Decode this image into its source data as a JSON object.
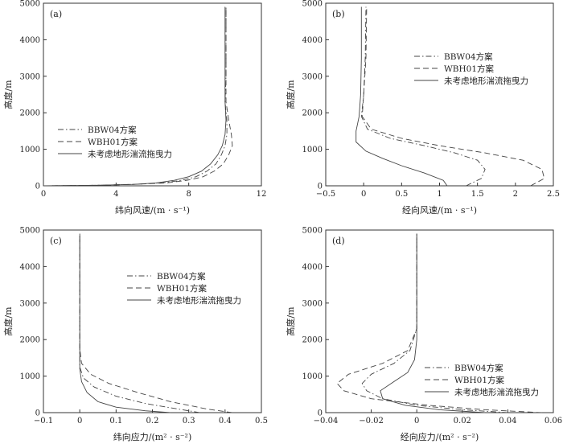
{
  "chart_data": [
    {
      "type": "line",
      "panel_label": "(a)",
      "xlabel": "纬向风速/(m · s⁻¹)",
      "ylabel": "高度/m",
      "xlim": [
        0,
        12
      ],
      "ylim": [
        0,
        5000
      ],
      "xticks": [
        "0",
        "4",
        "8",
        "12"
      ],
      "yticks": [
        "0",
        "1000",
        "2000",
        "3000",
        "4000",
        "5000"
      ],
      "legend_position": "middle-left",
      "series": [
        {
          "name": "BBW04方案",
          "style": "dashdot",
          "x": [
            0,
            3,
            5,
            6.5,
            7.6,
            8.4,
            9.0,
            9.5,
            9.8,
            10.0,
            10.1,
            10.1,
            10.0,
            10.05,
            10.05
          ],
          "y": [
            0,
            15,
            40,
            80,
            150,
            250,
            400,
            600,
            850,
            1100,
            1400,
            1800,
            2300,
            3000,
            4900
          ]
        },
        {
          "name": "WBH01方案",
          "style": "dashed",
          "x": [
            0,
            3,
            5,
            6.8,
            7.9,
            8.8,
            9.4,
            9.9,
            10.2,
            10.4,
            10.35,
            10.2,
            10.05,
            10.05,
            10.05
          ],
          "y": [
            0,
            15,
            40,
            80,
            150,
            250,
            400,
            600,
            850,
            1100,
            1400,
            1800,
            2300,
            3000,
            4900
          ]
        },
        {
          "name": "未考虑地形湍流拖曳力",
          "style": "solid",
          "x": [
            0,
            3,
            5,
            6.2,
            7.2,
            8.0,
            8.7,
            9.2,
            9.6,
            9.85,
            10.0,
            10.05,
            10.0,
            10.0,
            10.0
          ],
          "y": [
            0,
            15,
            40,
            80,
            150,
            250,
            400,
            600,
            850,
            1100,
            1400,
            1800,
            2300,
            3000,
            4900
          ]
        }
      ]
    },
    {
      "type": "line",
      "panel_label": "(b)",
      "xlabel": "经向风速/(m · s⁻¹)",
      "ylabel": "高度/m",
      "xlim": [
        -0.5,
        2.5
      ],
      "ylim": [
        0,
        5000
      ],
      "xticks": [
        "−0.5",
        "0",
        "0.5",
        "1",
        "1.5",
        "2",
        "2.5"
      ],
      "yticks": [
        "0",
        "1000",
        "2000",
        "3000",
        "4000",
        "5000"
      ],
      "legend_position": "top-right",
      "series": [
        {
          "name": "BBW04方案",
          "style": "dashdot",
          "x": [
            1.35,
            1.55,
            1.6,
            1.5,
            1.2,
            0.8,
            0.35,
            0.05,
            -0.03,
            0.0,
            0.02,
            0.03
          ],
          "y": [
            0,
            200,
            450,
            700,
            900,
            1100,
            1300,
            1550,
            1900,
            2500,
            3500,
            4900
          ]
        },
        {
          "name": "WBH01方案",
          "style": "dashed",
          "x": [
            2.2,
            2.38,
            2.35,
            2.1,
            1.6,
            1.0,
            0.5,
            0.1,
            -0.02,
            0.0,
            0.03,
            0.04
          ],
          "y": [
            0,
            200,
            450,
            700,
            900,
            1100,
            1300,
            1550,
            1900,
            2500,
            3500,
            4900
          ]
        },
        {
          "name": "未考虑地形湍流拖曳力",
          "style": "solid",
          "x": [
            1.1,
            1.05,
            0.8,
            0.5,
            0.25,
            0.03,
            -0.1,
            -0.1,
            -0.06,
            -0.04,
            -0.03,
            -0.03
          ],
          "y": [
            0,
            150,
            350,
            550,
            750,
            950,
            1200,
            1500,
            1900,
            2500,
            3500,
            4900
          ]
        }
      ]
    },
    {
      "type": "line",
      "panel_label": "(c)",
      "xlabel": "纬向应力/(m² · s⁻²)",
      "ylabel": "高度/m",
      "xlim": [
        -0.1,
        0.5
      ],
      "ylim": [
        0,
        5000
      ],
      "xticks": [
        "−0.1",
        "0",
        "0.1",
        "0.2",
        "0.3",
        "0.4",
        "0.5"
      ],
      "yticks": [
        "0",
        "1000",
        "2000",
        "3000",
        "4000",
        "5000"
      ],
      "legend_position": "top-right",
      "series": [
        {
          "name": "BBW04方案",
          "style": "dashdot",
          "x": [
            0.33,
            0.27,
            0.18,
            0.1,
            0.04,
            0.01,
            0.0,
            0.0,
            0.0,
            0.0
          ],
          "y": [
            0,
            100,
            250,
            450,
            700,
            950,
            1250,
            1700,
            2500,
            4900
          ]
        },
        {
          "name": "WBH01方案",
          "style": "dashed",
          "x": [
            0.42,
            0.35,
            0.25,
            0.16,
            0.08,
            0.03,
            0.005,
            0.0,
            0.0,
            0.0
          ],
          "y": [
            0,
            100,
            300,
            550,
            800,
            1050,
            1350,
            1750,
            2500,
            4900
          ]
        },
        {
          "name": "未考虑地形湍流拖曳力",
          "style": "solid",
          "x": [
            0.25,
            0.18,
            0.1,
            0.05,
            0.02,
            0.005,
            0.0,
            0.0,
            0.0,
            0.0
          ],
          "y": [
            0,
            50,
            150,
            300,
            550,
            850,
            1200,
            1700,
            2500,
            4900
          ]
        }
      ]
    },
    {
      "type": "line",
      "panel_label": "(d)",
      "xlabel": "经向应力/(m² · s⁻²)",
      "ylabel": "高度/m",
      "xlim": [
        -0.04,
        0.06
      ],
      "ylim": [
        0,
        5000
      ],
      "xticks": [
        "−0.04",
        "−0.02",
        "0",
        "0.02",
        "0.04",
        "0.06"
      ],
      "yticks": [
        "0",
        "1000",
        "2000",
        "3000",
        "4000",
        "5000"
      ],
      "legend_position": "bottom-right",
      "series": [
        {
          "name": "BBW04方案",
          "style": "dashdot",
          "x": [
            0.04,
            0.02,
            0.0,
            -0.015,
            -0.022,
            -0.024,
            -0.02,
            -0.01,
            -0.003,
            0.0,
            0.0
          ],
          "y": [
            0,
            80,
            200,
            380,
            600,
            800,
            1050,
            1350,
            1700,
            2300,
            4900
          ]
        },
        {
          "name": "WBH01方案",
          "style": "dashed",
          "x": [
            0.055,
            0.03,
            0.005,
            -0.02,
            -0.032,
            -0.035,
            -0.03,
            -0.015,
            -0.004,
            0.0,
            0.0
          ],
          "y": [
            0,
            80,
            200,
            380,
            600,
            800,
            1050,
            1350,
            1700,
            2300,
            4900
          ]
        },
        {
          "name": "未考虑地形湍流拖曳力",
          "style": "solid",
          "x": [
            0.03,
            0.01,
            -0.005,
            -0.015,
            -0.016,
            -0.01,
            -0.004,
            -0.001,
            0.0,
            0.0
          ],
          "y": [
            0,
            80,
            200,
            380,
            600,
            850,
            1100,
            1450,
            2000,
            4900
          ]
        }
      ]
    }
  ]
}
